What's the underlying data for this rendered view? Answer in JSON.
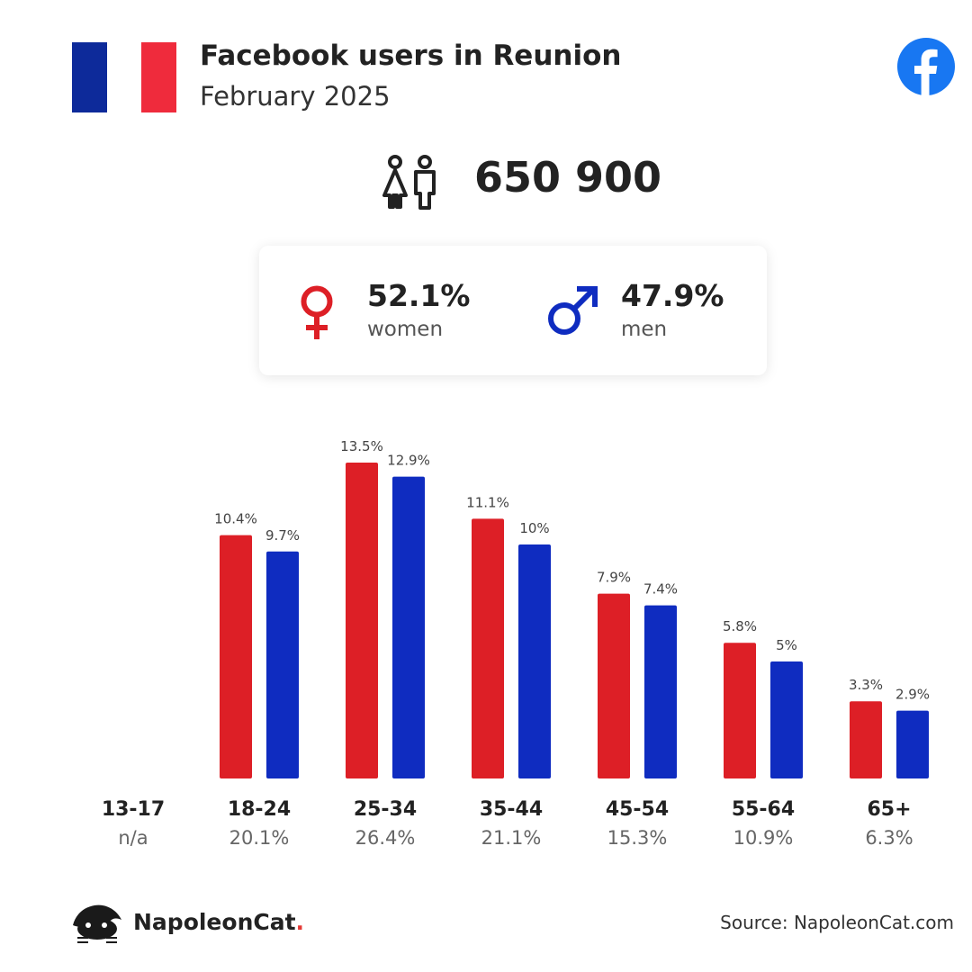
{
  "header": {
    "title": "Facebook users in Reunion",
    "subtitle": "February 2025"
  },
  "flag": {
    "colors": [
      "#0d2a9a",
      "#ffffff",
      "#ef2b3c"
    ]
  },
  "logo": {
    "icon": "facebook-icon",
    "color": "#1877f2"
  },
  "total": {
    "icon": "people-icon",
    "value": "650 900"
  },
  "gender": {
    "women": {
      "pct": "52.1%",
      "label": "women",
      "icon": "female-icon",
      "color": "#dd1f26"
    },
    "men": {
      "pct": "47.9%",
      "label": "men",
      "icon": "male-icon",
      "color": "#0f2cc0"
    }
  },
  "chart_data": {
    "type": "bar",
    "categories": [
      "13-17",
      "18-24",
      "25-34",
      "35-44",
      "45-54",
      "55-64",
      "65+"
    ],
    "category_totals": [
      "n/a",
      "20.1%",
      "26.4%",
      "21.1%",
      "15.3%",
      "10.9%",
      "6.3%"
    ],
    "series": [
      {
        "name": "women",
        "color": "#dd1f26",
        "values": [
          null,
          10.4,
          13.5,
          11.1,
          7.9,
          5.8,
          3.3
        ],
        "labels": [
          "",
          "10.4%",
          "13.5%",
          "11.1%",
          "7.9%",
          "5.8%",
          "3.3%"
        ]
      },
      {
        "name": "men",
        "color": "#0f2cc0",
        "values": [
          null,
          9.7,
          12.9,
          10,
          7.4,
          5,
          2.9
        ],
        "labels": [
          "",
          "9.7%",
          "12.9%",
          "10%",
          "7.4%",
          "5%",
          "2.9%"
        ]
      }
    ],
    "ylim": [
      0,
      13.5
    ],
    "grid": false,
    "title": "",
    "xlabel": "",
    "ylabel": ""
  },
  "footer": {
    "brand_icon": "napoleoncat-icon",
    "brand": "NapoleonCat",
    "brand_dot": ".",
    "source": "Source: NapoleonCat.com"
  }
}
